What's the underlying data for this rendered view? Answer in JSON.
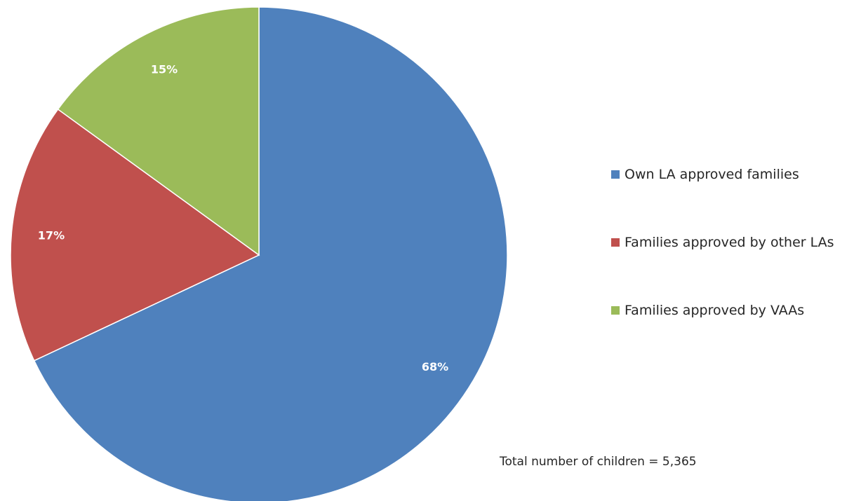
{
  "chart_data": {
    "type": "pie",
    "title": "",
    "categories": [
      "Own LA approved families",
      "Families approved by other LAs",
      "Families approved by VAAs"
    ],
    "values": [
      68,
      17,
      15
    ],
    "value_labels": [
      "68%",
      "17%",
      "15%"
    ],
    "colors": [
      "#4F81BD",
      "#C0504D",
      "#9BBB59"
    ],
    "start_angle": "12 o'clock",
    "direction": "clockwise",
    "legend_placement": "right",
    "annotation": "Total number of children = 5,365"
  }
}
